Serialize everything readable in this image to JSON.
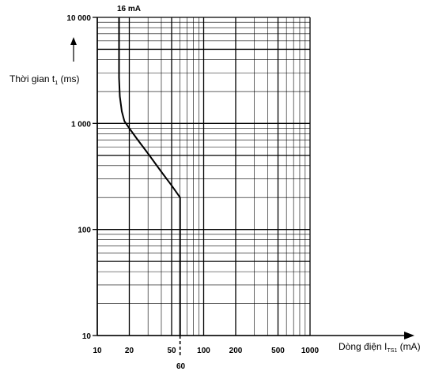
{
  "chart_data": {
    "type": "line",
    "xscale": "log",
    "yscale": "log",
    "xlim": [
      10,
      1000
    ],
    "ylim": [
      10,
      10000
    ],
    "grid": true,
    "x_ticks": [
      "10",
      "20",
      "50",
      "100",
      "200",
      "500",
      "1000"
    ],
    "y_ticks": [
      "10",
      "100",
      "1 000",
      "10 000"
    ],
    "xlabel": {
      "main": "Dòng điện I",
      "sub": "TS1",
      "unit": " (mA)"
    },
    "ylabel": {
      "main": "Thời gian t",
      "sub": "1",
      "unit": " (ms)"
    },
    "annotations": {
      "top_marker": "16 mA",
      "bottom_marker": "60"
    },
    "series": [
      {
        "x": [
          16,
          16,
          16.3,
          17,
          18,
          20,
          24,
          30,
          40,
          50,
          60,
          60
        ],
        "y": [
          10000,
          2700,
          1800,
          1300,
          1050,
          900,
          700,
          520,
          350,
          260,
          200,
          10
        ]
      }
    ]
  }
}
